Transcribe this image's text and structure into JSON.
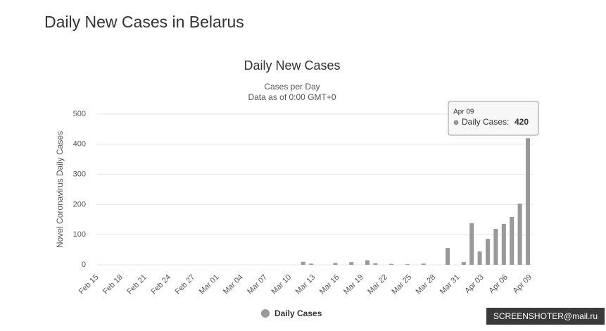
{
  "page_title": "Daily New Cases in Belarus",
  "watermark": "SCREENSHOTER@mail.ru",
  "chart_data": {
    "type": "bar",
    "title": "Daily New Cases",
    "subtitle": [
      "Cases per Day",
      "Data as of 0:00 GMT+0"
    ],
    "y_label": "Novel Coronavirus Daily Cases",
    "categories": [
      "Feb 15",
      null,
      null,
      "Feb 18",
      null,
      null,
      "Feb 21",
      null,
      null,
      "Feb 24",
      null,
      null,
      "Feb 27",
      null,
      null,
      "Mar 01",
      null,
      null,
      "Mar 04",
      null,
      null,
      "Mar 07",
      null,
      null,
      "Mar 10",
      null,
      null,
      "Mar 13",
      null,
      null,
      "Mar 16",
      null,
      null,
      "Mar 19",
      null,
      null,
      "Mar 22",
      null,
      null,
      "Mar 25",
      null,
      null,
      "Mar 28",
      null,
      null,
      "Mar 31",
      null,
      null,
      "Apr 03",
      null,
      null,
      "Apr 06",
      null,
      null,
      "Apr 09"
    ],
    "series": [
      {
        "name": "Daily Cases",
        "color": "#999999",
        "values": [
          0,
          0,
          0,
          0,
          0,
          0,
          0,
          0,
          0,
          0,
          0,
          0,
          0,
          0,
          0,
          0,
          0,
          0,
          0,
          0,
          0,
          0,
          0,
          0,
          0,
          0,
          10,
          4,
          0,
          0,
          6,
          0,
          9,
          0,
          15,
          5,
          0,
          3,
          0,
          2,
          0,
          4,
          0,
          0,
          56,
          0,
          9,
          138,
          44,
          86,
          119,
          136,
          159,
          203,
          420
        ]
      }
    ],
    "tooltip": {
      "date": "Apr 09",
      "label": "Daily Cases:"
    },
    "ylim": [
      0,
      500
    ],
    "yticks": [
      0,
      100,
      200,
      300,
      400,
      500
    ],
    "grid": true
  }
}
